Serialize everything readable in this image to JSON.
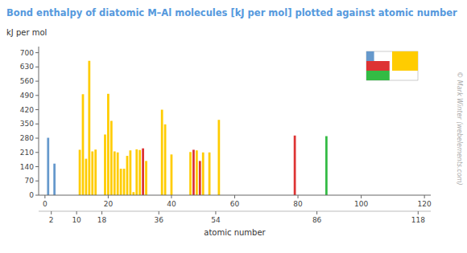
{
  "chart_data": {
    "type": "bar",
    "title": "Bond enthalpy of diatomic M–Al molecules [kJ per mol] plotted against atomic number",
    "ylabel": "kJ per mol",
    "xlabel": "atomic number",
    "annotations": [
      "© Mark Winter (webelements.com)"
    ],
    "x": [
      1,
      3,
      11,
      12,
      13,
      14,
      15,
      16,
      19,
      20,
      21,
      22,
      23,
      24,
      25,
      26,
      27,
      28,
      29,
      30,
      31,
      32,
      37,
      38,
      40,
      46,
      47,
      48,
      49,
      50,
      52,
      55,
      79,
      89
    ],
    "values": [
      282,
      155,
      223,
      496,
      179,
      660,
      215,
      224,
      298,
      498,
      365,
      215,
      210,
      130,
      130,
      193,
      220,
      15,
      225,
      222,
      230,
      168,
      420,
      348,
      200,
      212,
      223,
      220,
      168,
      210,
      210,
      370,
      293,
      290
    ],
    "colors": [
      "#6699cc",
      "#6699cc",
      "#ffcc00",
      "#ffcc00",
      "#ffcc00",
      "#ffcc00",
      "#ffcc00",
      "#ffcc00",
      "#ffcc00",
      "#ffcc00",
      "#ffcc00",
      "#ffcc00",
      "#ffcc00",
      "#ffcc00",
      "#ffcc00",
      "#ffcc00",
      "#ffcc00",
      "#ffcc00",
      "#ffcc00",
      "#ffcc00",
      "#dd3333",
      "#ffcc00",
      "#ffcc00",
      "#ffcc00",
      "#ffcc00",
      "#ffcc00",
      "#dd3333",
      "#ffcc00",
      "#dd3333",
      "#ffcc00",
      "#ffcc00",
      "#ffcc00",
      "#dd3333",
      "#33bb44"
    ],
    "xlim": [
      -2,
      122
    ],
    "xticks": [
      0,
      20,
      40,
      60,
      80,
      100,
      120
    ],
    "x2lim": [
      -2,
      122
    ],
    "x2ticks": [
      2,
      10,
      18,
      36,
      54,
      86,
      118
    ],
    "ylim": [
      0,
      730
    ],
    "yticks": [
      0,
      70,
      140,
      210,
      280,
      350,
      420,
      490,
      560,
      630,
      700
    ]
  }
}
